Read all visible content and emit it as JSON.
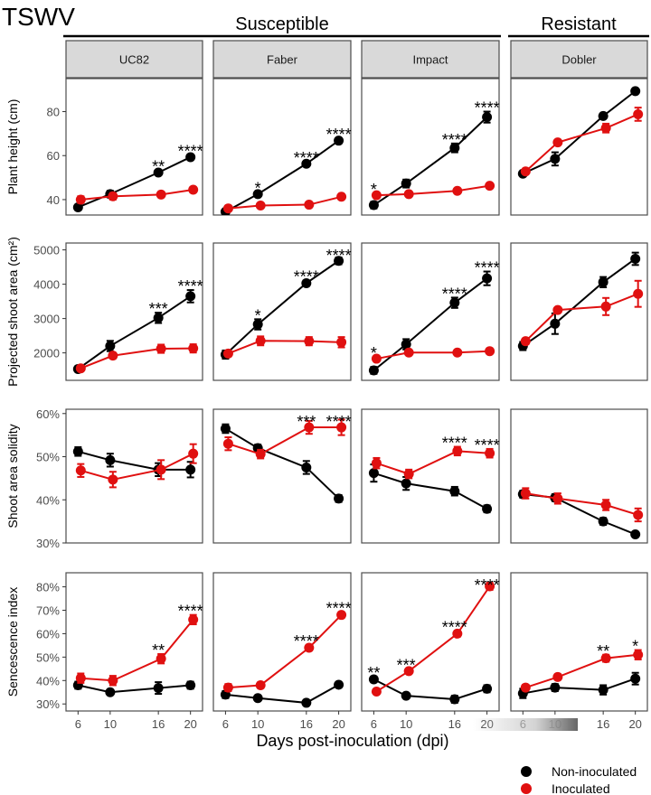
{
  "figure": {
    "title": "TSWV",
    "groups": [
      {
        "label": "Susceptible",
        "panels": [
          0,
          1,
          2
        ]
      },
      {
        "label": "Resistant",
        "panels": [
          3
        ]
      }
    ],
    "xlabel": "Days post-inoculation (dpi)",
    "legend": {
      "position": "bottom-right",
      "entries": [
        {
          "label": "Non-inoculated",
          "color": "#000000"
        },
        {
          "label": "Inoculated",
          "color": "#e01010"
        }
      ]
    }
  },
  "chart_data": {
    "type": "line",
    "title": "TSWV",
    "xlabel": "Days post-inoculation (dpi)",
    "x": [
      6,
      10,
      16,
      20
    ],
    "x_ticks": [
      "6",
      "10",
      "16",
      "20"
    ],
    "cultivars": [
      "UC82",
      "Faber",
      "Impact",
      "Dobler"
    ],
    "series_names": [
      "Non-inoculated",
      "Inoculated"
    ],
    "series_colors": [
      "#000000",
      "#e01010"
    ],
    "rows": [
      {
        "ylabel": "Plant height (cm)",
        "ylim": [
          33,
          95
        ],
        "yticks": [
          40,
          60,
          80
        ],
        "ytick_labels": [
          "40",
          "60",
          "80"
        ],
        "panels": [
          {
            "series": [
              {
                "name": "Non-inoculated",
                "values": [
                  36.5,
                  42.5,
                  52.3,
                  59.3
                ],
                "err": [
                  1.2,
                  1.5,
                  1.0,
                  1.0
                ]
              },
              {
                "name": "Inoculated",
                "values": [
                  40.0,
                  41.5,
                  42.3,
                  44.5
                ],
                "err": [
                  1.5,
                  1.5,
                  1.2,
                  1.2
                ]
              }
            ],
            "sig": [
              "",
              "",
              "**",
              "****"
            ]
          },
          {
            "series": [
              {
                "name": "Non-inoculated",
                "values": [
                  34.5,
                  42.5,
                  56.3,
                  66.8
                ],
                "err": [
                  0.8,
                  1.0,
                  1.0,
                  1.0
                ]
              },
              {
                "name": "Inoculated",
                "values": [
                  36.0,
                  37.3,
                  37.7,
                  41.3
                ],
                "err": [
                  0.8,
                  1.0,
                  1.0,
                  1.0
                ]
              }
            ],
            "sig": [
              "",
              "*",
              "****",
              "****"
            ]
          },
          {
            "series": [
              {
                "name": "Non-inoculated",
                "values": [
                  37.5,
                  47.3,
                  63.5,
                  77.5
                ],
                "err": [
                  1.5,
                  1.8,
                  2.0,
                  2.5
                ]
              },
              {
                "name": "Inoculated",
                "values": [
                  42.0,
                  42.5,
                  44.0,
                  46.3
                ],
                "err": [
                  0.8,
                  0.8,
                  0.8,
                  0.8
                ]
              }
            ],
            "sig": [
              "*",
              "",
              "****",
              "****"
            ]
          },
          {
            "series": [
              {
                "name": "Non-inoculated",
                "values": [
                  51.8,
                  58.5,
                  78.0,
                  89.3
                ],
                "err": [
                  1.0,
                  3.0,
                  1.0,
                  1.0
                ]
              },
              {
                "name": "Inoculated",
                "values": [
                  52.8,
                  66.0,
                  72.5,
                  78.8
                ],
                "err": [
                  0.8,
                  1.0,
                  2.0,
                  3.0
                ]
              }
            ],
            "sig": [
              "",
              "",
              "",
              ""
            ]
          }
        ]
      },
      {
        "ylabel": "Projected shoot area (cm²)",
        "ylim": [
          1200,
          5200
        ],
        "yticks": [
          2000,
          3000,
          4000,
          5000
        ],
        "ytick_labels": [
          "2000",
          "3000",
          "4000",
          "5000"
        ],
        "panels": [
          {
            "series": [
              {
                "name": "Non-inoculated",
                "values": [
                  1530,
                  2200,
                  3020,
                  3650
                ],
                "err": [
                  80,
                  150,
                  150,
                  180
                ]
              },
              {
                "name": "Inoculated",
                "values": [
                  1550,
                  1920,
                  2120,
                  2130
                ],
                "err": [
                  60,
                  80,
                  120,
                  120
                ]
              }
            ],
            "sig": [
              "",
              "",
              "***",
              "****"
            ]
          },
          {
            "series": [
              {
                "name": "Non-inoculated",
                "values": [
                  1950,
                  2830,
                  4030,
                  4680
                ],
                "err": [
                  120,
                  150,
                  80,
                  100
                ]
              },
              {
                "name": "Inoculated",
                "values": [
                  1980,
                  2350,
                  2340,
                  2310
                ],
                "err": [
                  80,
                  130,
                  120,
                  150
                ]
              }
            ],
            "sig": [
              "",
              "*",
              "****",
              "****"
            ]
          },
          {
            "series": [
              {
                "name": "Non-inoculated",
                "values": [
                  1490,
                  2250,
                  3460,
                  4170
                ],
                "err": [
                  100,
                  150,
                  150,
                  200
                ]
              },
              {
                "name": "Inoculated",
                "values": [
                  1830,
                  2010,
                  2010,
                  2050
                ],
                "err": [
                  60,
                  60,
                  60,
                  60
                ]
              }
            ],
            "sig": [
              "*",
              "",
              "****",
              "****"
            ]
          },
          {
            "series": [
              {
                "name": "Non-inoculated",
                "values": [
                  2200,
                  2850,
                  4060,
                  4740
                ],
                "err": [
                  120,
                  300,
                  150,
                  180
                ]
              },
              {
                "name": "Inoculated",
                "values": [
                  2340,
                  3250,
                  3350,
                  3720
                ],
                "err": [
                  80,
                  60,
                  250,
                  380
                ]
              }
            ],
            "sig": [
              "",
              "",
              "",
              ""
            ]
          }
        ]
      },
      {
        "ylabel": "Shoot area solidity",
        "ylim": [
          30,
          61
        ],
        "yticks": [
          30,
          40,
          50,
          60
        ],
        "ytick_labels": [
          "30%",
          "40%",
          "50%",
          "60%"
        ],
        "panels": [
          {
            "series": [
              {
                "name": "Non-inoculated",
                "values": [
                  51.2,
                  49.2,
                  47.0,
                  47.0
                ],
                "err": [
                  1.0,
                  1.5,
                  1.5,
                  1.8
                ]
              },
              {
                "name": "Inoculated",
                "values": [
                  46.8,
                  44.7,
                  47.0,
                  50.7
                ],
                "err": [
                  1.5,
                  1.8,
                  2.2,
                  2.2
                ]
              }
            ],
            "sig": [
              "",
              "",
              "",
              ""
            ]
          },
          {
            "series": [
              {
                "name": "Non-inoculated",
                "values": [
                  56.5,
                  52.0,
                  47.5,
                  40.3
                ],
                "err": [
                  1.0,
                  0.8,
                  1.5,
                  0.8
                ]
              },
              {
                "name": "Inoculated",
                "values": [
                  53.0,
                  50.6,
                  56.8,
                  56.8
                ],
                "err": [
                  1.5,
                  1.0,
                  1.5,
                  1.8
                ]
              }
            ],
            "sig": [
              "",
              "",
              "***",
              "****"
            ]
          },
          {
            "series": [
              {
                "name": "Non-inoculated",
                "values": [
                  46.2,
                  43.8,
                  42.0,
                  37.9
                ],
                "err": [
                  2.0,
                  1.5,
                  1.0,
                  0.8
                ]
              },
              {
                "name": "Inoculated",
                "values": [
                  48.5,
                  46.0,
                  51.3,
                  50.8
                ],
                "err": [
                  1.2,
                  1.0,
                  1.0,
                  1.0
                ]
              }
            ],
            "sig": [
              "",
              "",
              "****",
              "****"
            ]
          },
          {
            "series": [
              {
                "name": "Non-inoculated",
                "values": [
                  41.3,
                  40.5,
                  35.0,
                  32.0
                ],
                "err": [
                  0.8,
                  0.8,
                  0.8,
                  0.5
                ]
              },
              {
                "name": "Inoculated",
                "values": [
                  41.5,
                  40.3,
                  38.8,
                  36.5
                ],
                "err": [
                  1.2,
                  1.2,
                  1.2,
                  1.5
                ]
              }
            ],
            "sig": [
              "",
              "",
              "",
              ""
            ]
          }
        ]
      },
      {
        "ylabel": "Sencescence index",
        "ylim": [
          27,
          86
        ],
        "yticks": [
          30,
          40,
          50,
          60,
          70,
          80
        ],
        "ytick_labels": [
          "30%",
          "40%",
          "50%",
          "60%",
          "70%",
          "80%"
        ],
        "panels": [
          {
            "series": [
              {
                "name": "Non-inoculated",
                "values": [
                  38.0,
                  35.0,
                  36.8,
                  38.0
                ],
                "err": [
                  1.5,
                  1.0,
                  2.5,
                  1.5
                ]
              },
              {
                "name": "Inoculated",
                "values": [
                  41.0,
                  40.0,
                  49.3,
                  66.0
                ],
                "err": [
                  2.0,
                  2.0,
                  2.0,
                  2.0
                ]
              }
            ],
            "sig": [
              "",
              "",
              "**",
              "****"
            ]
          },
          {
            "series": [
              {
                "name": "Non-inoculated",
                "values": [
                  34.0,
                  32.5,
                  30.5,
                  38.2
                ],
                "err": [
                  1.5,
                  1.0,
                  1.0,
                  1.0
                ]
              },
              {
                "name": "Inoculated",
                "values": [
                  37.0,
                  38.0,
                  54.0,
                  68.0
                ],
                "err": [
                  1.5,
                  1.2,
                  1.2,
                  1.2
                ]
              }
            ],
            "sig": [
              "",
              "",
              "****",
              "****"
            ]
          },
          {
            "series": [
              {
                "name": "Non-inoculated",
                "values": [
                  40.5,
                  33.5,
                  32.0,
                  36.5
                ],
                "err": [
                  1.2,
                  1.0,
                  1.5,
                  1.5
                ]
              },
              {
                "name": "Inoculated",
                "values": [
                  35.3,
                  44.0,
                  60.0,
                  80.2
                ],
                "err": [
                  1.0,
                  1.0,
                  1.2,
                  1.5
                ]
              }
            ],
            "sig": [
              "**",
              "***",
              "****",
              "****"
            ]
          },
          {
            "series": [
              {
                "name": "Non-inoculated",
                "values": [
                  34.5,
                  37.0,
                  36.0,
                  40.8
                ],
                "err": [
                  2.0,
                  1.5,
                  2.0,
                  2.5
                ]
              },
              {
                "name": "Inoculated",
                "values": [
                  37.0,
                  41.5,
                  49.5,
                  51.0
                ],
                "err": [
                  1.2,
                  1.2,
                  1.5,
                  2.0
                ]
              }
            ],
            "sig": [
              "",
              "",
              "**",
              "*"
            ]
          }
        ]
      }
    ]
  }
}
